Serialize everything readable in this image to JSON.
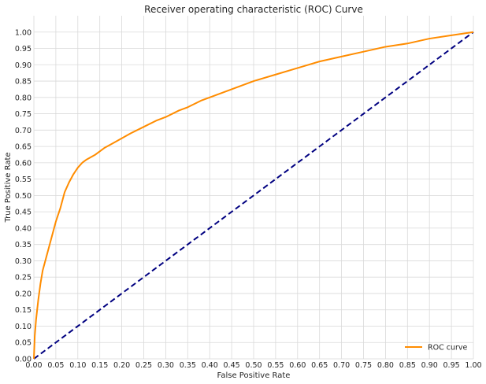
{
  "chart_data": {
    "type": "line",
    "title": "Receiver operating characteristic (ROC) Curve",
    "xlabel": "False Positive Rate",
    "ylabel": "True Positive Rate",
    "xlim": [
      0.0,
      1.0
    ],
    "ylim": [
      0.0,
      1.05
    ],
    "xticks": [
      "0.00",
      "0.05",
      "0.10",
      "0.15",
      "0.20",
      "0.25",
      "0.30",
      "0.35",
      "0.40",
      "0.45",
      "0.50",
      "0.55",
      "0.60",
      "0.65",
      "0.70",
      "0.75",
      "0.80",
      "0.85",
      "0.90",
      "0.95",
      "1.00"
    ],
    "yticks": [
      "0.00",
      "0.05",
      "0.10",
      "0.15",
      "0.20",
      "0.25",
      "0.30",
      "0.35",
      "0.40",
      "0.45",
      "0.50",
      "0.55",
      "0.60",
      "0.65",
      "0.70",
      "0.75",
      "0.80",
      "0.85",
      "0.90",
      "0.95",
      "1.00"
    ],
    "grid": true,
    "legend_position": "lower right",
    "series": [
      {
        "name": "ROC curve",
        "color": "#ff8c00",
        "style": "solid",
        "x": [
          0.0,
          0.002,
          0.005,
          0.01,
          0.015,
          0.02,
          0.03,
          0.04,
          0.05,
          0.06,
          0.07,
          0.08,
          0.09,
          0.1,
          0.11,
          0.12,
          0.14,
          0.16,
          0.18,
          0.2,
          0.22,
          0.25,
          0.28,
          0.3,
          0.33,
          0.35,
          0.38,
          0.4,
          0.45,
          0.5,
          0.55,
          0.6,
          0.65,
          0.7,
          0.75,
          0.8,
          0.85,
          0.9,
          0.95,
          1.0
        ],
        "y": [
          0.0,
          0.07,
          0.12,
          0.18,
          0.23,
          0.27,
          0.32,
          0.37,
          0.42,
          0.46,
          0.51,
          0.54,
          0.565,
          0.585,
          0.6,
          0.61,
          0.625,
          0.645,
          0.66,
          0.675,
          0.69,
          0.71,
          0.73,
          0.74,
          0.76,
          0.77,
          0.79,
          0.8,
          0.825,
          0.85,
          0.87,
          0.89,
          0.91,
          0.925,
          0.94,
          0.955,
          0.965,
          0.98,
          0.99,
          1.0
        ]
      },
      {
        "name": "",
        "color": "#000080",
        "style": "dashed",
        "x": [
          0.0,
          1.0
        ],
        "y": [
          0.0,
          1.0
        ]
      }
    ],
    "legend": [
      {
        "label": "ROC curve",
        "color": "#ff8c00"
      }
    ]
  }
}
